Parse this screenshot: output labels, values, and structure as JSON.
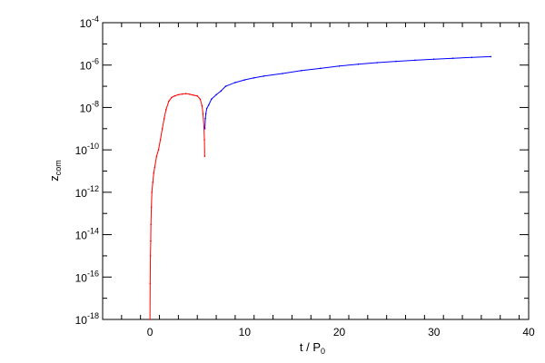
{
  "chart_data": {
    "type": "scatter",
    "title": "",
    "xlabel": {
      "main": "t / P",
      "subscript": "0"
    },
    "ylabel": {
      "main": "z",
      "subscript": "com"
    },
    "xlim": [
      -5,
      40
    ],
    "ylim": [
      1e-18,
      0.0001
    ],
    "yscale": "log",
    "grid": false,
    "legend": "none",
    "x_ticks": [
      {
        "value": 0,
        "label": "0"
      },
      {
        "value": 10,
        "label": "10"
      },
      {
        "value": 20,
        "label": "20"
      },
      {
        "value": 30,
        "label": "30"
      },
      {
        "value": 40,
        "label": "40"
      }
    ],
    "y_ticks": [
      {
        "value": 0.0001,
        "base": "10",
        "exp": "-4"
      },
      {
        "value": 1e-06,
        "base": "10",
        "exp": "-6"
      },
      {
        "value": 1e-08,
        "base": "10",
        "exp": "-8"
      },
      {
        "value": 1e-10,
        "base": "10",
        "exp": "-10"
      },
      {
        "value": 1e-12,
        "base": "10",
        "exp": "-12"
      },
      {
        "value": 1e-14,
        "base": "10",
        "exp": "-14"
      },
      {
        "value": 1e-16,
        "base": "10",
        "exp": "-16"
      },
      {
        "value": 1e-18,
        "base": "10",
        "exp": "-18"
      }
    ],
    "series": [
      {
        "color": "#ff0000",
        "x": [
          0.0,
          0.02,
          0.05,
          0.08,
          0.1,
          0.15,
          0.2,
          0.3,
          0.4,
          0.5,
          0.7,
          0.9,
          1.1,
          1.3,
          1.5,
          1.7,
          2.0,
          2.3,
          2.6,
          3.0,
          3.4,
          3.8,
          4.2,
          4.6,
          5.0,
          5.3,
          5.5,
          5.6,
          5.7,
          5.75,
          5.78
        ],
        "y": [
          1e-18,
          5e-17,
          1e-15,
          5e-15,
          3e-14,
          2e-13,
          1e-12,
          3e-12,
          8e-12,
          1.5e-11,
          5e-11,
          1e-10,
          3e-10,
          1e-09,
          3e-09,
          8e-09,
          2e-08,
          3e-08,
          3.5e-08,
          4e-08,
          4.3e-08,
          4.5e-08,
          4.2e-08,
          3.8e-08,
          3.5e-08,
          2.5e-08,
          1.2e-08,
          5e-09,
          1.2e-09,
          3e-10,
          5e-11
        ]
      },
      {
        "color": "#0000ff",
        "x": [
          5.8,
          5.85,
          5.9,
          6.0,
          6.2,
          6.5,
          7.0,
          7.5,
          8.0,
          9.0,
          10.0,
          11.0,
          12.0,
          14.0,
          16.0,
          18.0,
          20.0,
          22.0,
          24.0,
          26.0,
          28.0,
          30.0,
          32.0,
          34.0,
          36.0
        ],
        "y": [
          1e-09,
          3e-09,
          5e-09,
          9e-09,
          1.3e-08,
          2.5e-08,
          4e-08,
          6e-08,
          1e-07,
          1.5e-07,
          2e-07,
          2.5e-07,
          3e-07,
          4e-07,
          5.5e-07,
          7e-07,
          9e-07,
          1.1e-06,
          1.3e-06,
          1.5e-06,
          1.7e-06,
          1.9e-06,
          2.1e-06,
          2.3e-06,
          2.5e-06
        ]
      }
    ]
  }
}
